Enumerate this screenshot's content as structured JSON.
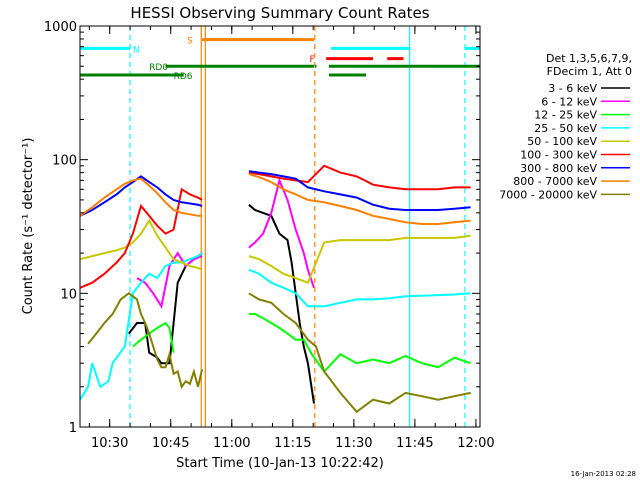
{
  "chart_data": {
    "type": "line",
    "title": "HESSI Observing Summary Count Rates",
    "xlabel": "Start Time (10-Jan-13 10:22:42)",
    "ylabel": "Count Rate (s⁻¹ detector⁻¹)",
    "yscale": "log",
    "ylim": [
      1,
      1000
    ],
    "xlim_minutes_after_start": [
      0,
      98.3
    ],
    "x_ticks": [
      "10:30",
      "10:45",
      "11:00",
      "11:15",
      "11:30",
      "11:45",
      "12:00"
    ],
    "y_ticks": [
      "1",
      "10",
      "100",
      "1000"
    ],
    "grid": false,
    "legend_position": "right",
    "legend_header": [
      "Det 1,3,5,6,7,9,",
      "FDecim 1, Att 0"
    ],
    "timestamp": "16-Jan-2013 02:28",
    "bar_labels": {
      "N": "N",
      "S": "S",
      "F": "F",
      "RD0": "RD0",
      "RD6": "RD6"
    },
    "series": [
      {
        "name": "3 - 6 keV",
        "color": "#000000",
        "x": [
          12,
          14,
          16,
          17,
          19,
          20,
          22,
          24,
          26,
          28,
          30,
          41.5,
          43,
          45,
          47,
          49,
          51,
          52,
          54,
          55,
          56,
          57.5
        ],
        "y": [
          5,
          6,
          6,
          3.6,
          3.3,
          3.0,
          3.0,
          12,
          16,
          18,
          20,
          46,
          42,
          40,
          38,
          28,
          25,
          17,
          6,
          4,
          3,
          1.5
        ]
      },
      {
        "name": "6 - 12 keV",
        "color": "#ff00ff",
        "x": [
          14,
          16,
          18,
          20,
          22,
          24,
          26,
          28,
          30,
          41.5,
          43,
          45,
          47,
          49,
          51,
          53,
          55,
          56,
          57.5
        ],
        "y": [
          13,
          12,
          10,
          8,
          16,
          20,
          16,
          18,
          19,
          22,
          24,
          28,
          40,
          70,
          50,
          30,
          20,
          15,
          11
        ]
      },
      {
        "name": "12 - 25 keV",
        "color": "#00ff00",
        "x": [
          13,
          15,
          17,
          19,
          21,
          22,
          23,
          41.5,
          43,
          45,
          47,
          49,
          51,
          53,
          55,
          57,
          60,
          64,
          68,
          72,
          76,
          80,
          84,
          88,
          92,
          96
        ],
        "y": [
          4,
          4.5,
          5,
          5.5,
          6,
          5.5,
          3.6,
          7,
          7,
          6.5,
          6,
          5.5,
          5,
          4.5,
          4.5,
          3.5,
          2.6,
          3.5,
          3,
          3.2,
          3,
          3.4,
          3,
          2.8,
          3.3,
          3
        ]
      },
      {
        "name": "25 - 50 keV",
        "color": "#00ffff",
        "x": [
          0,
          2,
          3,
          5,
          7,
          8,
          11,
          13,
          15,
          17,
          19,
          21,
          23,
          25,
          27,
          29,
          30,
          41.5,
          44,
          47,
          50,
          53,
          56,
          60,
          64,
          68,
          72,
          76,
          80,
          84,
          88,
          92,
          96
        ],
        "y": [
          1.6,
          2.0,
          3.0,
          2.0,
          2.2,
          3.0,
          4,
          10,
          12,
          14,
          13,
          16,
          17,
          17,
          18,
          19,
          20,
          15,
          14,
          12,
          11,
          10,
          8,
          8,
          8.5,
          9,
          9,
          9.2,
          9.5,
          9.6,
          9.7,
          9.8,
          10
        ]
      },
      {
        "name": "50 - 100 keV",
        "color": "#c8c800",
        "x": [
          0,
          3,
          6,
          9,
          11,
          13,
          15,
          17,
          19,
          21,
          23,
          25,
          27,
          29,
          30,
          41.5,
          44,
          47,
          50,
          53,
          56,
          60,
          64,
          68,
          72,
          76,
          80,
          84,
          88,
          92,
          96
        ],
        "y": [
          18,
          19,
          20,
          21,
          22,
          24,
          28,
          35,
          27,
          22,
          18,
          17,
          16,
          15.5,
          15,
          19,
          18,
          16,
          14,
          13,
          12,
          24,
          25,
          25,
          25,
          25,
          26,
          26,
          26,
          26,
          27
        ]
      },
      {
        "name": "100 - 300 keV",
        "color": "#ff0000",
        "x": [
          0,
          3,
          6,
          9,
          11,
          13,
          15,
          17,
          19,
          21,
          23,
          25,
          27,
          29,
          30,
          41.5,
          44,
          47,
          50,
          53,
          56,
          60,
          64,
          68,
          72,
          76,
          80,
          84,
          88,
          92,
          96
        ],
        "y": [
          11,
          12,
          14,
          17,
          20,
          28,
          45,
          38,
          32,
          28,
          30,
          60,
          55,
          52,
          50,
          80,
          78,
          75,
          72,
          70,
          68,
          90,
          80,
          75,
          65,
          62,
          60,
          60,
          60,
          62,
          62
        ]
      },
      {
        "name": "300 - 800 keV",
        "color": "#0000ff",
        "x": [
          0,
          3,
          6,
          9,
          11,
          13,
          15,
          17,
          19,
          21,
          23,
          25,
          27,
          29,
          30,
          41.5,
          44,
          47,
          50,
          53,
          56,
          60,
          64,
          68,
          72,
          76,
          80,
          84,
          88,
          92,
          96
        ],
        "y": [
          38,
          42,
          48,
          55,
          62,
          68,
          75,
          68,
          62,
          55,
          50,
          48,
          47,
          46,
          45,
          82,
          80,
          78,
          75,
          72,
          62,
          58,
          55,
          52,
          46,
          43,
          42,
          42,
          42,
          43,
          44
        ]
      },
      {
        "name": "800 - 7000 keV",
        "color": "#ff8000",
        "x": [
          0,
          3,
          6,
          9,
          11,
          13,
          15,
          17,
          19,
          21,
          23,
          25,
          27,
          29,
          30,
          41.5,
          44,
          47,
          50,
          53,
          56,
          60,
          64,
          68,
          72,
          76,
          80,
          84,
          88,
          92,
          96
        ],
        "y": [
          38,
          44,
          52,
          60,
          66,
          70,
          72,
          64,
          56,
          48,
          42,
          40,
          39,
          38,
          38,
          78,
          74,
          68,
          60,
          55,
          50,
          48,
          45,
          42,
          38,
          36,
          34,
          33,
          33,
          34,
          35
        ]
      },
      {
        "name": "7000 - 20000 keV",
        "color": "#808000",
        "x": [
          2,
          4,
          6,
          8,
          10,
          12,
          14,
          15,
          16,
          17,
          18,
          19,
          20,
          21,
          22,
          23,
          24,
          25,
          26,
          27,
          28,
          29,
          30,
          41.5,
          44,
          47,
          50,
          53,
          56,
          58,
          60,
          64,
          68,
          72,
          76,
          80,
          84,
          88,
          92,
          96
        ],
        "y": [
          4.2,
          5,
          6,
          7,
          9,
          10,
          9,
          7,
          6,
          5,
          4,
          3.2,
          2.8,
          2.8,
          3.5,
          2.5,
          2.6,
          2.0,
          2.2,
          2.1,
          2.6,
          2.0,
          2.7,
          10,
          9,
          8.5,
          7,
          6,
          4.5,
          4,
          2.6,
          1.8,
          1.3,
          1.6,
          1.5,
          1.8,
          1.7,
          1.6,
          1.7,
          1.8
        ]
      }
    ],
    "flags": [
      {
        "label": "N",
        "color": "#00ffff",
        "level": 680,
        "segments": [
          [
            0,
            12.3
          ],
          [
            61.7,
            81
          ],
          [
            94.5,
            98.3
          ]
        ]
      },
      {
        "label": "S",
        "color": "#ff8000",
        "level": 790,
        "segments": [
          [
            30,
            57.5
          ]
        ]
      },
      {
        "label": "F",
        "color": "#ff0000",
        "level": 570,
        "segments": [
          [
            60.5,
            72
          ],
          [
            75.5,
            79.5
          ]
        ]
      },
      {
        "label": "RD0",
        "color": "#008000",
        "level": 500,
        "segments": [
          [
            21,
            57.5
          ],
          [
            57.7,
            58.1
          ],
          [
            61.2,
            98.3
          ]
        ]
      },
      {
        "label": "RD6",
        "color": "#008000",
        "level": 430,
        "segments": [
          [
            0,
            25.5
          ],
          [
            61.2,
            70.3
          ]
        ]
      }
    ],
    "boundaries": [
      {
        "color": "#00ffff",
        "style": "dashed",
        "x": 12.3
      },
      {
        "color": "#ff8000",
        "style": "solid",
        "x": 29.8
      },
      {
        "color": "#ff8000",
        "style": "solid",
        "x": 30.8
      },
      {
        "color": "#ff8000",
        "style": "dashed",
        "x": 57.7
      },
      {
        "color": "#00ffff",
        "style": "solid",
        "x": 81.0
      },
      {
        "color": "#00ffff",
        "style": "dashed",
        "x": 94.6
      }
    ]
  }
}
